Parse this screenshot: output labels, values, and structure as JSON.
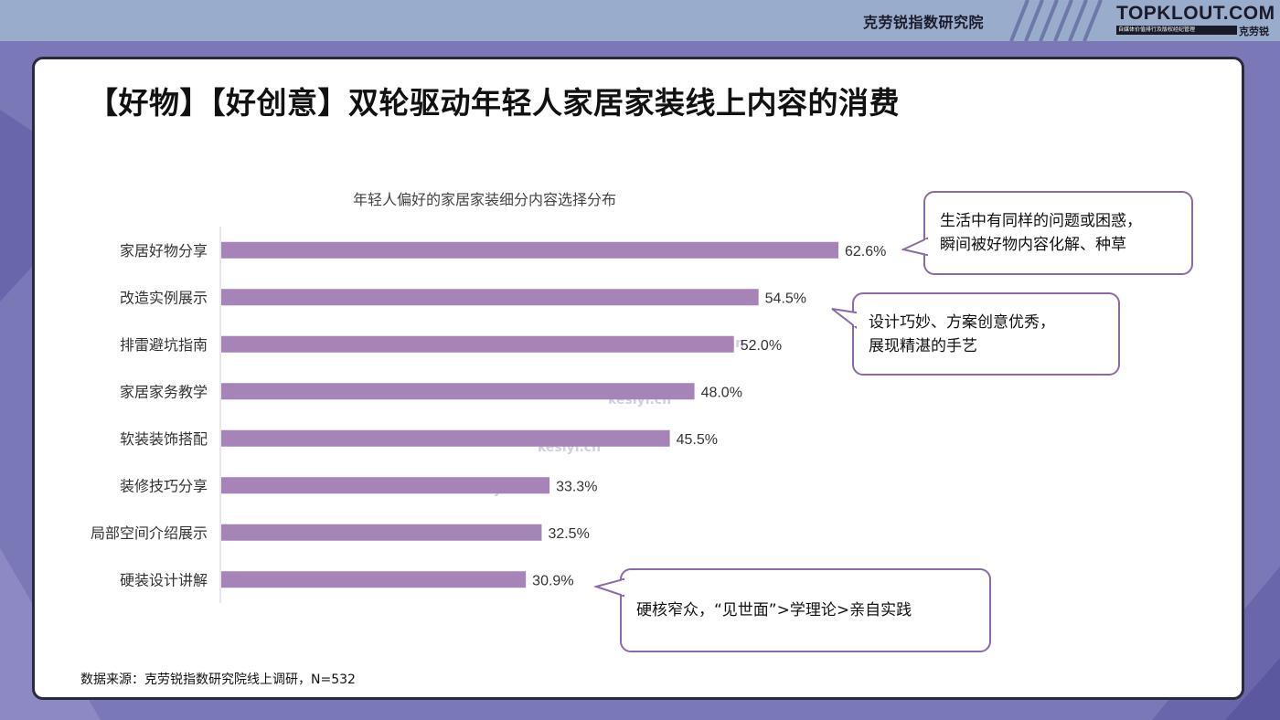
{
  "header": {
    "org_name": "克劳锐指数研究院",
    "logo_text": "TOPKLOUT.COM",
    "logo_sub": "自媒体价值排行及版权经纪管理",
    "logo_brand": "克劳锐"
  },
  "page_title": "【好物】【好创意】双轮驱动年轻人家居家装线上内容的消费",
  "chart_data": {
    "type": "bar",
    "orientation": "horizontal",
    "title": "年轻人偏好的家居家装细分内容选择分布",
    "categories": [
      "家居好物分享",
      "改造实例展示",
      "排雷避坑指南",
      "家居家务教学",
      "软装装饰搭配",
      "装修技巧分享",
      "局部空间介绍展示",
      "硬装设计讲解"
    ],
    "values": [
      62.6,
      54.5,
      52.0,
      48.0,
      45.5,
      33.3,
      32.5,
      30.9
    ],
    "value_labels": [
      "62.6%",
      "54.5%",
      "52.0%",
      "48.0%",
      "45.5%",
      "33.3%",
      "32.5%",
      "30.9%"
    ],
    "unit": "%",
    "bar_color": "#a684b8",
    "xlabel": "",
    "ylabel": "",
    "grid": false,
    "legend": "none"
  },
  "callouts": [
    {
      "lines": [
        "生活中有同样的问题或困惑，",
        "瞬间被好物内容化解、种草"
      ]
    },
    {
      "lines": [
        "设计巧妙、方案创意优秀，",
        "展现精湛的手艺"
      ]
    },
    {
      "lines": [
        "硬核窄众，“见世面”>学理论>亲自实践"
      ]
    }
  ],
  "watermark": "kesiyi.cn",
  "source": "数据来源：克劳锐指数研究院线上调研，N=532",
  "colors": {
    "background": "#7b78b8",
    "header_bar": "#9aaccb",
    "card_border": "#2a2a3a",
    "callout_border": "#8a6aa8"
  }
}
